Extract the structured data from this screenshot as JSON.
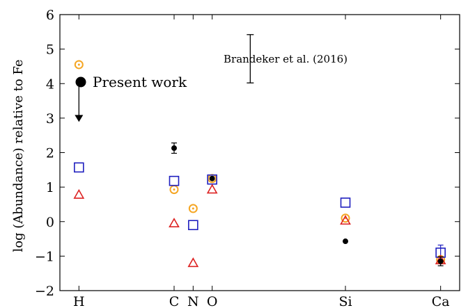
{
  "chart_data": {
    "type": "scatter",
    "ylabel": "log (Abundance) relative to Fe",
    "ylim": [
      -2,
      6
    ],
    "yticks": [
      -2,
      -1,
      0,
      1,
      2,
      3,
      4,
      5,
      6
    ],
    "yticklabels": [
      "−2",
      "−1",
      "0",
      "1",
      "2",
      "3",
      "4",
      "5",
      "6"
    ],
    "categories": [
      "H",
      "C",
      "N",
      "O",
      "Si",
      "Ca"
    ],
    "category_positions": [
      1,
      6,
      7,
      8,
      15,
      20
    ],
    "xlim": [
      0,
      21
    ],
    "colors": {
      "present": "#000000",
      "orange": "#f5a623",
      "blue": "#1f1fbf",
      "red": "#dd2222"
    },
    "series": [
      {
        "name": "Present work",
        "marker": "filled-circle",
        "points": [
          {
            "x": 6,
            "y": 2.13,
            "yerr": 0.15
          },
          {
            "x": 8,
            "y": 1.25,
            "yerr": 0.0
          },
          {
            "x": 15,
            "y": -0.57,
            "yerr": 0.0
          },
          {
            "x": 20,
            "y": -1.15,
            "yerr": 0.13
          }
        ],
        "upper_limits": [
          {
            "x": 1,
            "y_from": 4.02,
            "y_to": 2.95
          }
        ]
      },
      {
        "marker": "orange-dotted-circle",
        "points": [
          {
            "x": 1,
            "y": 4.55
          },
          {
            "x": 6,
            "y": 0.93
          },
          {
            "x": 7,
            "y": 0.38
          },
          {
            "x": 8,
            "y": 1.25
          },
          {
            "x": 15,
            "y": 0.1
          },
          {
            "x": 20,
            "y": -1.1
          }
        ]
      },
      {
        "marker": "blue-square",
        "points": [
          {
            "x": 1,
            "y": 1.57
          },
          {
            "x": 6,
            "y": 1.18
          },
          {
            "x": 7,
            "y": -0.1
          },
          {
            "x": 8,
            "y": 1.22
          },
          {
            "x": 15,
            "y": 0.55
          },
          {
            "x": 20,
            "y": -0.9
          }
        ],
        "error_bars": [
          {
            "x": 20,
            "y": -0.9,
            "yerr": 0.22
          }
        ]
      },
      {
        "marker": "red-triangle",
        "points": [
          {
            "x": 1,
            "y": 0.78
          },
          {
            "x": 6,
            "y": -0.05
          },
          {
            "x": 7,
            "y": -1.2
          },
          {
            "x": 8,
            "y": 0.93
          },
          {
            "x": 15,
            "y": 0.03
          },
          {
            "x": 20,
            "y": -1.12
          }
        ]
      }
    ],
    "legend": {
      "label": "Present work",
      "marker": "filled-circle",
      "placement": "top-left"
    },
    "annotation": {
      "text": "Brandeker et al. (2016)",
      "bar_x": 10,
      "bar_y_from": 4.02,
      "bar_y_to": 5.42
    }
  }
}
